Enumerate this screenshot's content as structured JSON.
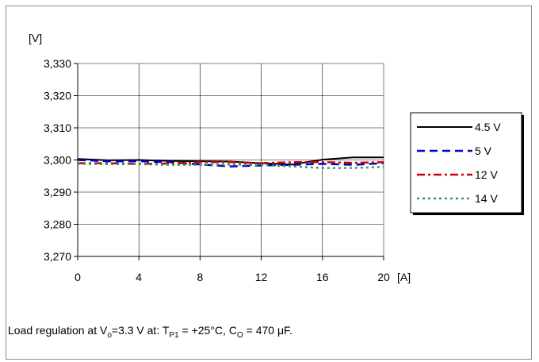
{
  "chart_data": {
    "type": "line",
    "ylabel": "[V]",
    "xlabel": "[A]",
    "xlim": [
      0,
      20
    ],
    "ylim": [
      3.27,
      3.33
    ],
    "xticks": [
      "0",
      "4",
      "8",
      "12",
      "16",
      "20"
    ],
    "yticks": [
      "3,270",
      "3,280",
      "3,290",
      "3,300",
      "3,310",
      "3,320",
      "3,330"
    ],
    "grid": true,
    "legend_position": "right",
    "series": [
      {
        "name": "4.5 V",
        "color": "#000000",
        "style": "solid",
        "x": [
          0,
          2,
          4,
          6,
          8,
          10,
          12,
          14,
          16,
          18,
          20
        ],
        "y": [
          3.3003,
          3.2999,
          3.3,
          3.2997,
          3.2996,
          3.2995,
          3.299,
          3.2986,
          3.3001,
          3.3008,
          3.3008
        ]
      },
      {
        "name": "5 V",
        "color": "#0000cc",
        "style": "dash",
        "x": [
          0,
          2,
          4,
          6,
          8,
          10,
          12,
          14,
          16,
          18,
          20
        ],
        "y": [
          3.3,
          3.2996,
          3.2996,
          3.2993,
          3.2986,
          3.298,
          3.2983,
          3.2985,
          3.2988,
          3.2985,
          3.299
        ]
      },
      {
        "name": "12 V",
        "color": "#cc0000",
        "style": "dashdot",
        "x": [
          0,
          2,
          4,
          6,
          8,
          10,
          12,
          14,
          16,
          18,
          20
        ],
        "y": [
          3.299,
          3.299,
          3.2988,
          3.2989,
          3.2993,
          3.2993,
          3.299,
          3.2993,
          3.2993,
          3.2991,
          3.2993
        ]
      },
      {
        "name": "14 V",
        "color": "#339966",
        "style": "dot",
        "x": [
          0,
          2,
          4,
          6,
          8,
          10,
          12,
          14,
          16,
          18,
          20
        ],
        "y": [
          3.2988,
          3.2987,
          3.2987,
          3.2985,
          3.2985,
          3.2986,
          3.2984,
          3.298,
          3.2975,
          3.2975,
          3.2978
        ]
      }
    ]
  },
  "caption": {
    "prefix": "Load regulation at V",
    "sub_o": "o",
    "mid1": "=3.3 V at: T",
    "sub_p1": "P1",
    "mid2": " = +25°C, C",
    "sub_co": "O",
    "suffix": " = 470 μF."
  }
}
